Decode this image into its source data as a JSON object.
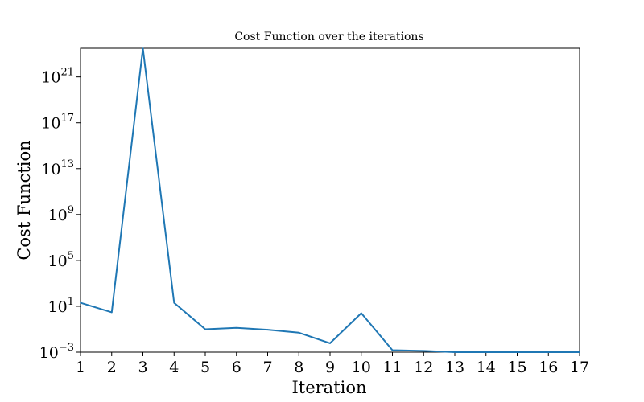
{
  "chart_data": {
    "type": "line",
    "title": "Cost Function over the iterations",
    "xlabel": "Iteration",
    "ylabel": "Cost Function",
    "y_scale": "log",
    "xlim": [
      1,
      17
    ],
    "ylim_exponent": [
      -3,
      23.5
    ],
    "grid": false,
    "line_color": "#1f77b4",
    "x_ticks": [
      1,
      2,
      3,
      4,
      5,
      6,
      7,
      8,
      9,
      10,
      11,
      12,
      13,
      14,
      15,
      16,
      17
    ],
    "y_ticks": [
      {
        "base": "10",
        "exp": "−3",
        "value": -3
      },
      {
        "base": "10",
        "exp": "1",
        "value": 1
      },
      {
        "base": "10",
        "exp": "5",
        "value": 5
      },
      {
        "base": "10",
        "exp": "9",
        "value": 9
      },
      {
        "base": "10",
        "exp": "13",
        "value": 13
      },
      {
        "base": "10",
        "exp": "17",
        "value": 17
      },
      {
        "base": "10",
        "exp": "21",
        "value": 21
      }
    ],
    "series": [
      {
        "x": [
          1,
          2,
          3,
          4,
          5,
          6,
          7,
          8,
          9,
          10,
          11,
          12,
          13,
          14,
          15,
          16,
          17
        ],
        "y": [
          20,
          3,
          3e+23,
          20,
          0.1,
          0.13,
          0.09,
          0.05,
          0.006,
          2.5,
          0.0015,
          0.0013,
          0.00022,
          0.00055,
          4e-05,
          8e-05,
          7e-06
        ]
      }
    ]
  }
}
